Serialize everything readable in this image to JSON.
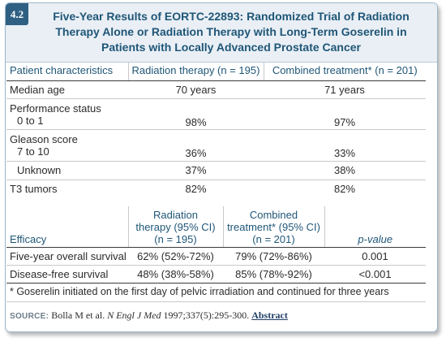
{
  "figure": {
    "number": "4.2",
    "title": "Five-Year Results of EORTC-22893: Randomized Trial of Radiation Therapy Alone or Radiation Therapy with Long-Term Goserelin in Patients with Locally Advanced Prostate Cancer"
  },
  "characteristics": {
    "headers": [
      "Patient characteristics",
      "Radiation therapy (n = 195)",
      "Combined treatment* (n = 201)"
    ],
    "rows": [
      {
        "label": "Median age",
        "radiation": "70 years",
        "combined": "71 years"
      },
      {
        "label": "Performance status",
        "sublabel": "0 to 1",
        "radiation": "98%",
        "combined": "97%"
      },
      {
        "label": "Gleason score",
        "sublabel": "7 to 10",
        "radiation": "36%",
        "combined": "33%"
      },
      {
        "label": "Unknown",
        "radiation": "37%",
        "combined": "38%"
      },
      {
        "label": "T3 tumors",
        "radiation": "82%",
        "combined": "82%"
      }
    ]
  },
  "efficacy": {
    "headers": {
      "col1": "Efficacy",
      "col2_line1": "Radiation",
      "col2_line2": "therapy (95% CI)",
      "col2_line3": "(n = 195)",
      "col3_line1": "Combined",
      "col3_line2": "treatment* (95% CI)",
      "col3_line3": "(n = 201)",
      "col4": "p-value"
    },
    "rows": [
      {
        "label": "Five-year overall survival",
        "radiation": "62% (52%-72%)",
        "combined": "79% (72%-86%)",
        "p": "0.001"
      },
      {
        "label": "Disease-free survival",
        "radiation": "48% (38%-58%)",
        "combined": "85% (78%-92%)",
        "p": "<0.001"
      }
    ]
  },
  "footnote": "* Goserelin initiated on the first day of pelvic irradiation and continued for three years",
  "source": {
    "label": "SOURCE:",
    "authors": "Bolla M et al.",
    "journal": "N Engl J Med",
    "citation": "1997;337(5):295-300.",
    "link": "Abstract"
  }
}
